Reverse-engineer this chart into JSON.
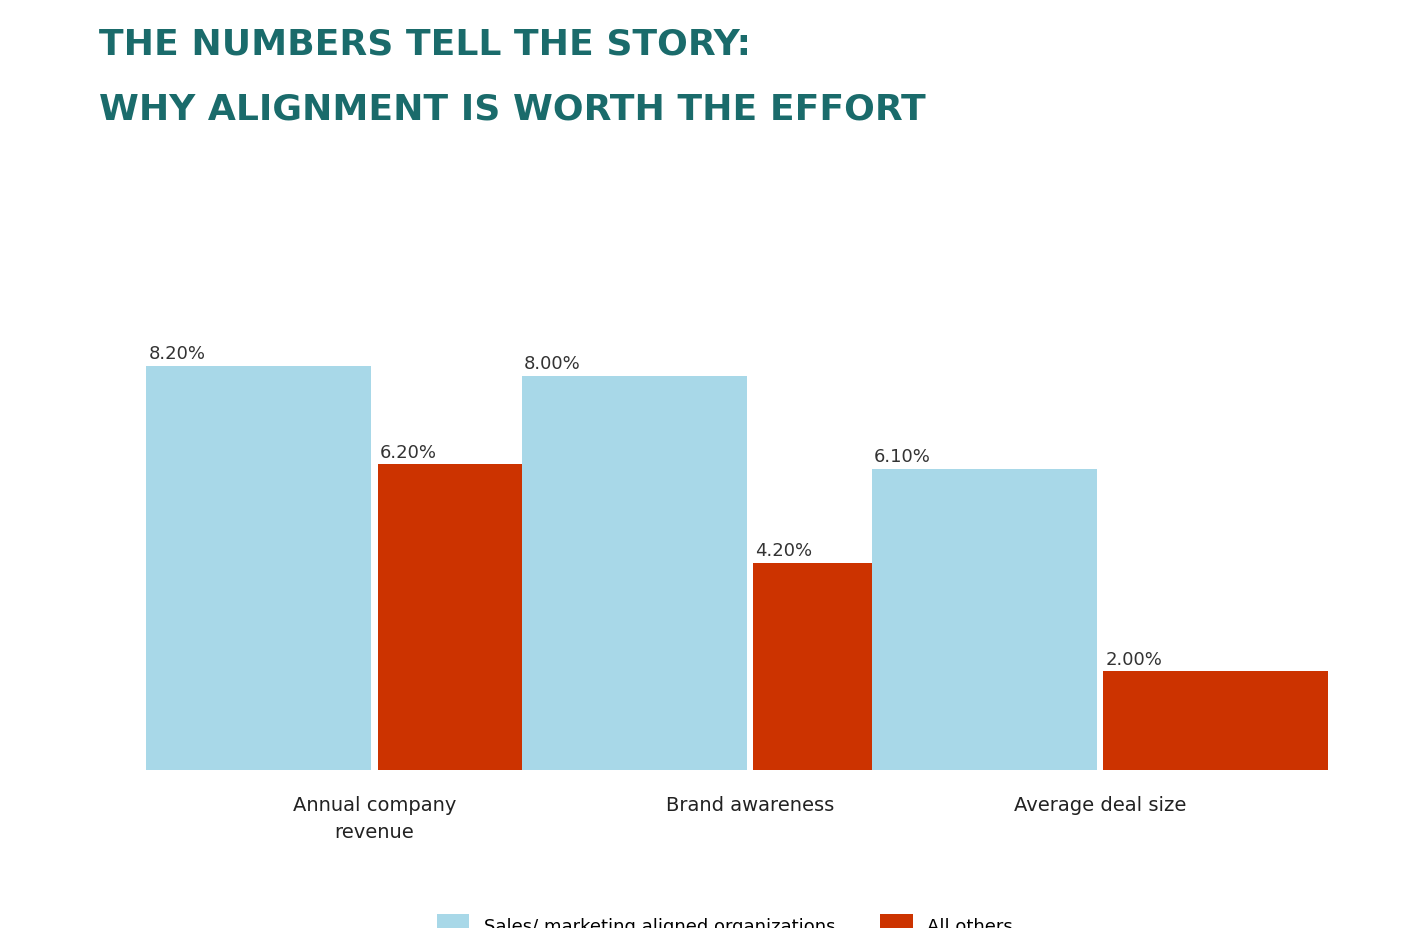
{
  "title_line1": "THE NUMBERS TELL THE STORY:",
  "title_line2": "WHY ALIGNMENT IS WORTH THE EFFORT",
  "title_color": "#1a6b6b",
  "title_fontsize": 26,
  "background_color": "#ffffff",
  "categories": [
    "Annual company\nrevenue",
    "Brand awareness",
    "Average deal size"
  ],
  "aligned_values": [
    8.2,
    8.0,
    6.1
  ],
  "others_values": [
    6.2,
    4.2,
    2.0
  ],
  "aligned_color": "#a8d8e8",
  "others_color": "#cc3300",
  "bar_width": 0.18,
  "group_centers": [
    0.22,
    0.52,
    0.8
  ],
  "bar_gap": 0.005,
  "label_fontsize": 14,
  "xlabel_fontsize": 14,
  "legend_label_aligned": "Sales/ marketing aligned organizations",
  "legend_label_others": "All others",
  "legend_fontsize": 13,
  "value_label_fontsize": 13,
  "ylim": [
    0,
    9.8
  ],
  "xlim": [
    0.0,
    1.0
  ]
}
